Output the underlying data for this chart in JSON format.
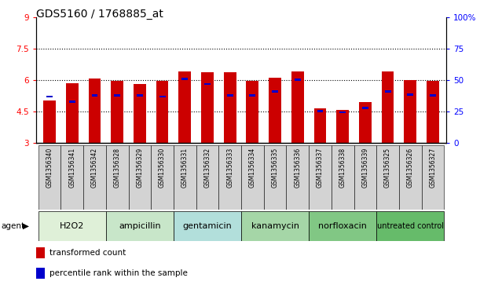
{
  "title": "GDS5160 / 1768885_at",
  "samples": [
    "GSM1356340",
    "GSM1356341",
    "GSM1356342",
    "GSM1356328",
    "GSM1356329",
    "GSM1356330",
    "GSM1356331",
    "GSM1356332",
    "GSM1356333",
    "GSM1356334",
    "GSM1356335",
    "GSM1356336",
    "GSM1356337",
    "GSM1356338",
    "GSM1356339",
    "GSM1356325",
    "GSM1356326",
    "GSM1356327"
  ],
  "red_values": [
    5.0,
    5.85,
    6.05,
    5.95,
    5.8,
    5.95,
    6.4,
    6.35,
    6.35,
    5.95,
    6.1,
    6.4,
    4.65,
    4.55,
    4.95,
    6.4,
    6.0,
    5.95
  ],
  "blue_values": [
    5.15,
    4.9,
    5.2,
    5.2,
    5.2,
    5.15,
    6.0,
    5.75,
    5.2,
    5.2,
    5.4,
    5.95,
    4.45,
    4.4,
    4.6,
    5.4,
    5.25,
    5.2
  ],
  "agent_groups": [
    {
      "label": "H2O2",
      "start": 0,
      "end": 3
    },
    {
      "label": "ampicillin",
      "start": 3,
      "end": 6
    },
    {
      "label": "gentamicin",
      "start": 6,
      "end": 9
    },
    {
      "label": "kanamycin",
      "start": 9,
      "end": 12
    },
    {
      "label": "norfloxacin",
      "start": 12,
      "end": 15
    },
    {
      "label": "untreated control",
      "start": 15,
      "end": 18
    }
  ],
  "agent_colors": [
    "#dff0d8",
    "#c8e6c9",
    "#b2dfdb",
    "#a5d6a7",
    "#81c784",
    "#66bb6a"
  ],
  "ylim_left": [
    3,
    9
  ],
  "ylim_right": [
    0,
    100
  ],
  "yticks_left": [
    3,
    4.5,
    6,
    7.5,
    9
  ],
  "ytick_labels_left": [
    "3",
    "4.5",
    "6",
    "7.5",
    "9"
  ],
  "yticks_right": [
    0,
    25,
    50,
    75,
    100
  ],
  "ytick_labels_right": [
    "0",
    "25",
    "50",
    "75",
    "100%"
  ],
  "bar_color": "#cc0000",
  "blue_color": "#0000cc",
  "bar_width": 0.55,
  "legend_red": "transformed count",
  "legend_blue": "percentile rank within the sample"
}
